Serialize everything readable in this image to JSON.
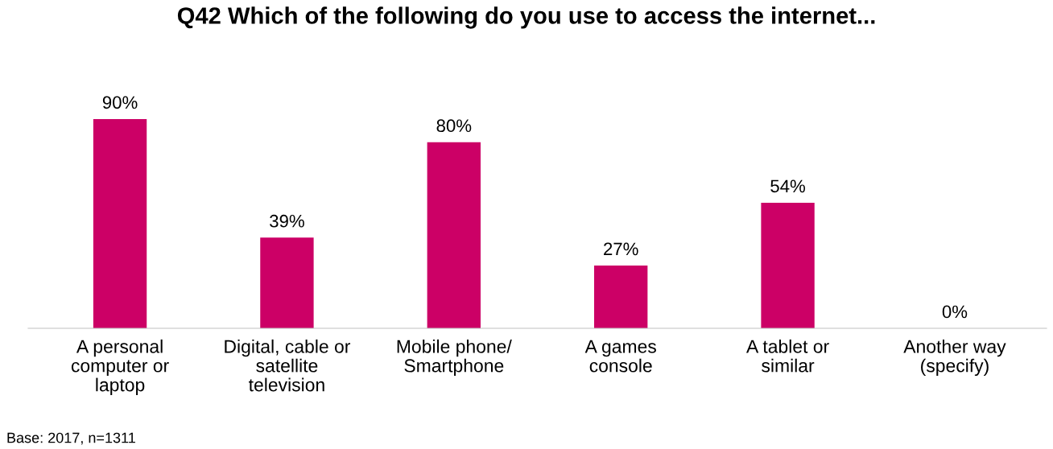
{
  "chart_data": {
    "type": "bar",
    "title": "Q42 Which of the following do you use to access the internet...",
    "categories": [
      "A personal\ncomputer or\nlaptop",
      "Digital, cable or\nsatellite\ntelevision",
      "Mobile phone/\nSmartphone",
      "A games\nconsole",
      "A tablet or\nsimilar",
      "Another way\n(specify)"
    ],
    "values": [
      90,
      39,
      80,
      27,
      54,
      0
    ],
    "value_labels": [
      "90%",
      "39%",
      "80%",
      "27%",
      "54%",
      "0%"
    ],
    "color": "#cc0066",
    "annotations": [
      "Base: 2017, n=1311"
    ]
  }
}
